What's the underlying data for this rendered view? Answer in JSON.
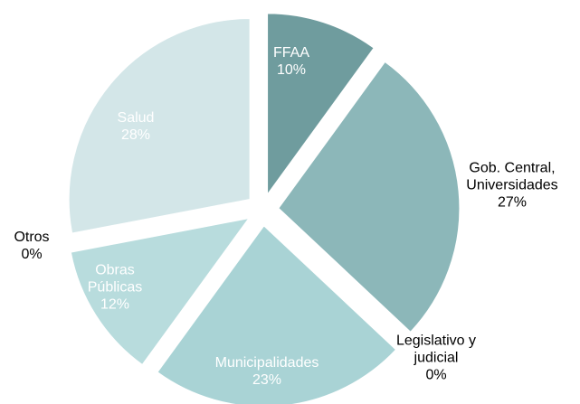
{
  "chart_data": {
    "type": "pie",
    "categories": [
      "FFAA",
      "Gob. Central, Universidades",
      "Legislativo y judicial",
      "Municipalidades",
      "Obras Públicas",
      "Otros",
      "Salud"
    ],
    "values": [
      10,
      27,
      0,
      23,
      12,
      0,
      28
    ],
    "value_labels": [
      "10%",
      "27%",
      "0%",
      "23%",
      "12%",
      "0%",
      "28%"
    ],
    "colors": [
      "#6f9c9e",
      "#8cb7b9",
      "#9cc4c6",
      "#a9d3d5",
      "#b8dcdd",
      "#c8e2e4",
      "#d3e6e8"
    ]
  }
}
